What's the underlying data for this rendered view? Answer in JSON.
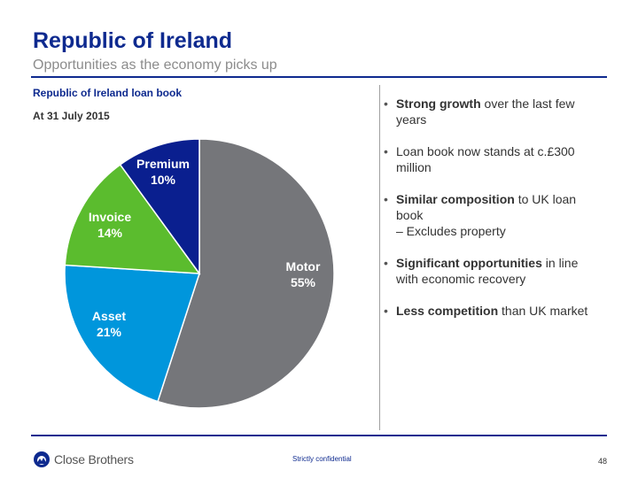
{
  "header": {
    "title": "Republic of Ireland",
    "subtitle": "Opportunities as the economy picks up"
  },
  "chart_heading": "Republic of Ireland loan book",
  "chart_subheading": "At 31 July 2015",
  "chart_data": {
    "type": "pie",
    "categories": [
      "Motor",
      "Asset",
      "Invoice",
      "Premium"
    ],
    "values": [
      55,
      21,
      14,
      10
    ],
    "labels": [
      "55%",
      "21%",
      "14%",
      "10%"
    ],
    "colors": [
      "#75767a",
      "#0096dc",
      "#5bbc2e",
      "#0a1f8f"
    ]
  },
  "bullets": [
    {
      "bold": "Strong growth",
      "text": " over the last few years"
    },
    {
      "bold": "",
      "text": "Loan book now stands at c.£300 million"
    },
    {
      "bold": "Similar composition",
      "text": " to UK loan book"
    },
    {
      "sub": "–  Excludes property"
    },
    {
      "bold": "Significant opportunities",
      "text": " in line with economic recovery"
    },
    {
      "bold": "Less competition",
      "text": " than UK market"
    }
  ],
  "footer": {
    "logo_text": "Close Brothers",
    "confidential": "Strictly confidential",
    "page_number": "48"
  },
  "colors": {
    "brand": "#0e2a8f"
  }
}
